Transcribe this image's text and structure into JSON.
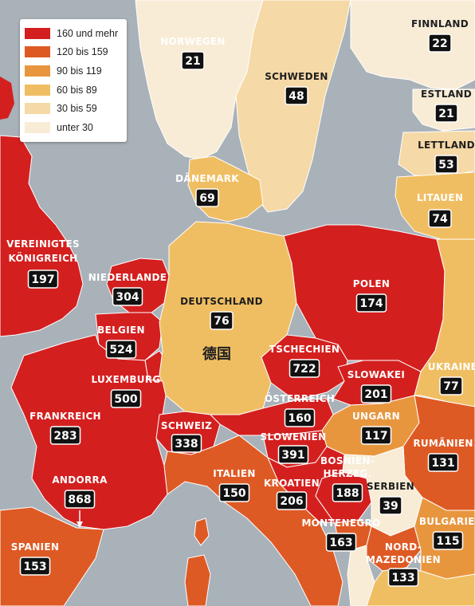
{
  "legend": {
    "items": [
      {
        "label": "160 und mehr",
        "color": "#d41f1f"
      },
      {
        "label": "120 bis 159",
        "color": "#de5a24"
      },
      {
        "label": "90 bis 119",
        "color": "#e8963e"
      },
      {
        "label": "60 bis 89",
        "color": "#f0be62"
      },
      {
        "label": "30 bis 59",
        "color": "#f5d9a6"
      },
      {
        "label": "unter 30",
        "color": "#f8ecd6"
      }
    ]
  },
  "annotation": "德国",
  "countries": [
    {
      "id": "norwegen",
      "name": "NORWEGEN",
      "value": "21"
    },
    {
      "id": "schweden",
      "name": "SCHWEDEN",
      "value": "48"
    },
    {
      "id": "finnland",
      "name": "FINNLAND",
      "value": "22"
    },
    {
      "id": "estland",
      "name": "ESTLAND",
      "value": "21"
    },
    {
      "id": "lettland",
      "name": "LETTLAND",
      "value": "53"
    },
    {
      "id": "litauen",
      "name": "LITAUEN",
      "value": "74"
    },
    {
      "id": "daenemark",
      "name": "DÄNEMARK",
      "value": "69"
    },
    {
      "id": "uk",
      "name_line1": "VEREINIGTES",
      "name_line2": "KÖNIGREICH",
      "value": "197"
    },
    {
      "id": "niederlande",
      "name": "NIEDERLANDE",
      "value": "304"
    },
    {
      "id": "belgien",
      "name": "BELGIEN",
      "value": "524"
    },
    {
      "id": "luxemburg",
      "name": "LUXEMBURG",
      "value": "500"
    },
    {
      "id": "deutschland",
      "name": "DEUTSCHLAND",
      "value": "76"
    },
    {
      "id": "polen",
      "name": "POLEN",
      "value": "174"
    },
    {
      "id": "tschechien",
      "name": "TSCHECHIEN",
      "value": "722"
    },
    {
      "id": "slowakei",
      "name": "SLOWAKEI",
      "value": "201"
    },
    {
      "id": "ukraine",
      "name": "UKRAINE",
      "value": "77"
    },
    {
      "id": "oesterreich",
      "name": "ÖSTERREICH",
      "value": "160"
    },
    {
      "id": "frankreich",
      "name": "FRANKREICH",
      "value": "283"
    },
    {
      "id": "schweiz",
      "name": "SCHWEIZ",
      "value": "338"
    },
    {
      "id": "slowenien",
      "name": "SLOWENIEN",
      "value": "391"
    },
    {
      "id": "ungarn",
      "name": "UNGARN",
      "value": "117"
    },
    {
      "id": "rumaenien",
      "name": "RUMÄNIEN",
      "value": "131"
    },
    {
      "id": "andorra",
      "name": "ANDORRA",
      "value": "868"
    },
    {
      "id": "italien",
      "name": "ITALIEN",
      "value": "150"
    },
    {
      "id": "kroatien",
      "name": "KROATIEN",
      "value": "206"
    },
    {
      "id": "bosnien",
      "name_line1": "BOSNIEN-",
      "name_line2": "HERZEG.",
      "value": "188"
    },
    {
      "id": "serbien",
      "name": "SERBIEN",
      "value": "39"
    },
    {
      "id": "bulgarien",
      "name": "BULGARIEN",
      "value": "115"
    },
    {
      "id": "montenegro",
      "name": "MONTENEGRO",
      "value": "163"
    },
    {
      "id": "nordmazedonien",
      "name_line1": "NORD-",
      "name_line2": "MAZEDONIEN",
      "value": "133"
    },
    {
      "id": "spanien",
      "name": "SPANIEN",
      "value": "153"
    }
  ]
}
